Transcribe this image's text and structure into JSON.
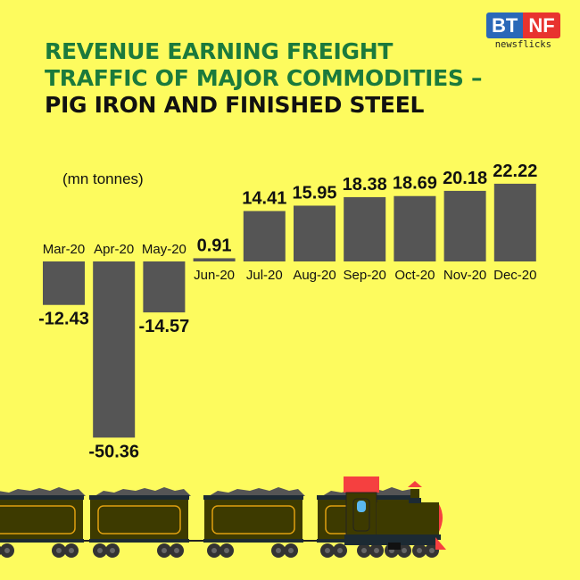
{
  "title": {
    "line1": "REVENUE EARNING FREIGHT",
    "line2": "TRAFFIC OF MAJOR COMMODITIES –",
    "line3": "PIG IRON AND FINISHED STEEL"
  },
  "logo": {
    "left": "BT",
    "right": "NF",
    "sub": "newsflicks"
  },
  "colors": {
    "background": "#fdfb5e",
    "bar": "#555555",
    "title_green": "#1b7a3c"
  },
  "chart_data": {
    "type": "bar",
    "unit_label": "(mn tonnes)",
    "categories": [
      "Mar-20",
      "Apr-20",
      "May-20",
      "Jun-20",
      "Jul-20",
      "Aug-20",
      "Sep-20",
      "Oct-20",
      "Nov-20",
      "Dec-20"
    ],
    "values": [
      -12.43,
      -50.36,
      -14.57,
      0.91,
      14.41,
      15.95,
      18.38,
      18.69,
      20.18,
      22.22
    ],
    "value_labels": [
      "-12.43",
      "-50.36",
      "-14.57",
      "0.91",
      "14.41",
      "15.95",
      "18.38",
      "18.69",
      "20.18",
      "22.22"
    ],
    "grid": false
  }
}
